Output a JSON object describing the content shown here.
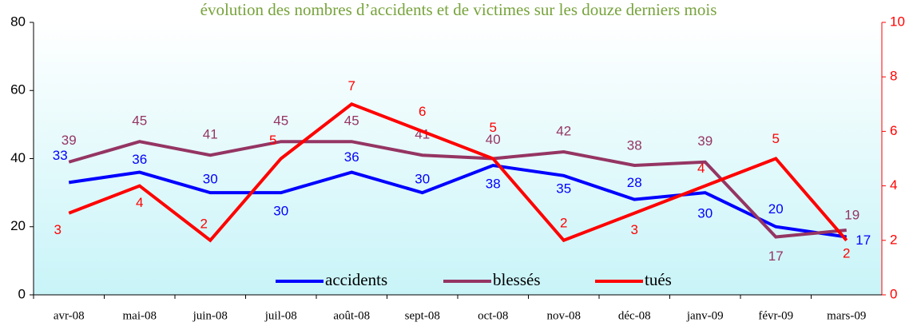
{
  "chart_data": {
    "type": "line",
    "title": "évolution des nombres d’accidents et de victimes sur les douze derniers mois",
    "categories": [
      "avr-08",
      "mai-08",
      "juin-08",
      "juil-08",
      "août-08",
      "sept-08",
      "oct-08",
      "nov-08",
      "déc-08",
      "janv-09",
      "févr-09",
      "mars-09"
    ],
    "series": [
      {
        "name": "accidents",
        "color": "#0000ff",
        "values": [
          33,
          36,
          30,
          30,
          36,
          30,
          38,
          35,
          28,
          30,
          20,
          17
        ]
      },
      {
        "name": "blessés",
        "color": "#953563",
        "values": [
          39,
          45,
          41,
          45,
          45,
          41,
          40,
          42,
          38,
          39,
          17,
          19
        ]
      },
      {
        "name": "tués",
        "color": "#ff0000",
        "axis": "y2",
        "values": [
          3,
          4,
          2,
          5,
          7,
          6,
          5,
          2,
          3,
          4,
          5,
          2
        ]
      }
    ],
    "ylim": [
      0,
      80
    ],
    "yticks": [
      0,
      20,
      40,
      60,
      80
    ],
    "y2lim": [
      0,
      10
    ],
    "y2ticks": [
      0,
      2,
      4,
      6,
      8,
      10
    ],
    "legend": "bottom"
  }
}
